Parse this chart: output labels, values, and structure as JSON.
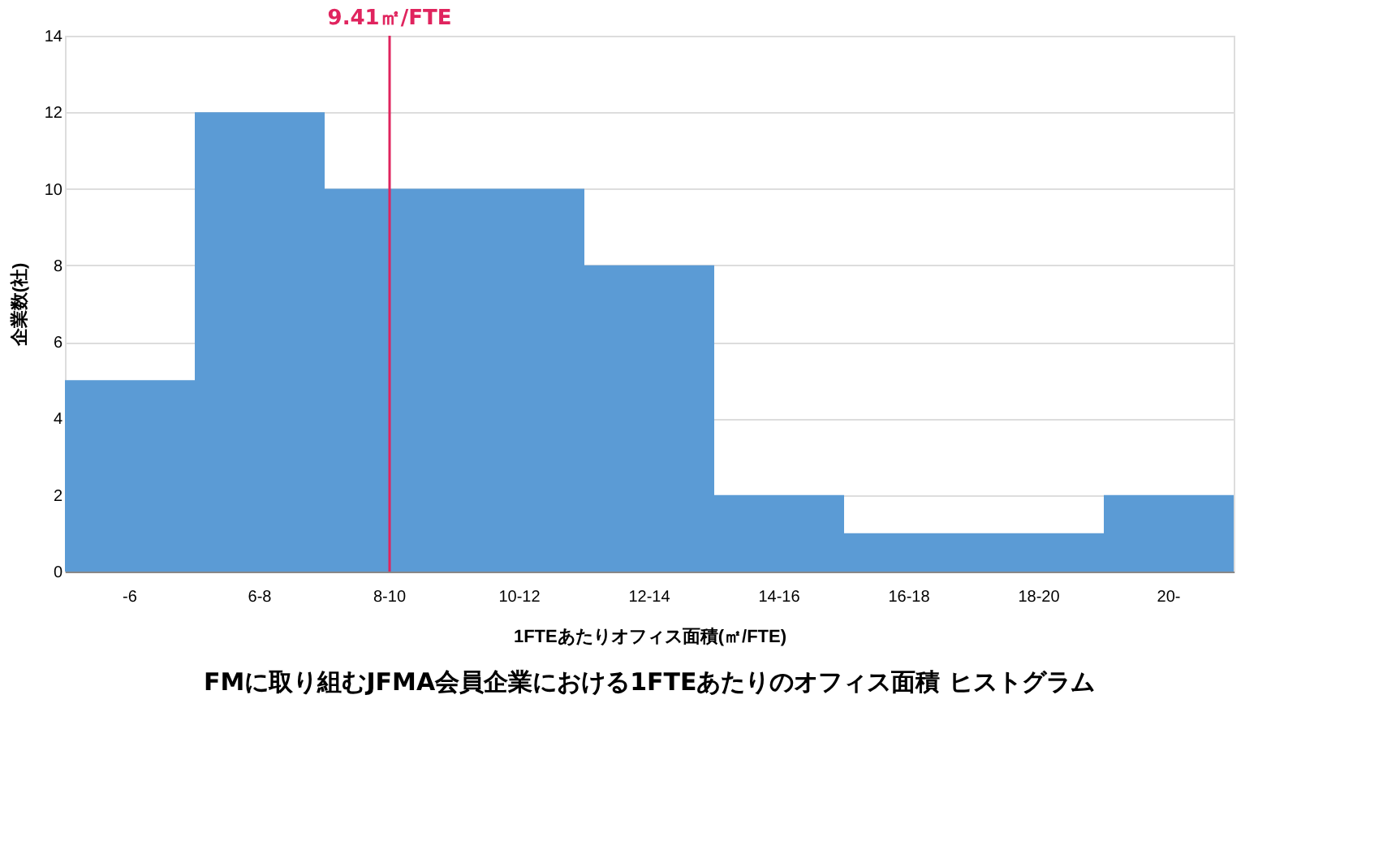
{
  "chart_data": {
    "type": "bar",
    "title": "FMに取り組むJFMA会員企業における1FTEあたりのオフィス面積 ヒストグラム",
    "xlabel": "1FTEあたりオフィス面積(㎡/FTE)",
    "ylabel": "企業数(社)",
    "categories": [
      "-6",
      "6-8",
      "8-10",
      "10-12",
      "12-14",
      "14-16",
      "16-18",
      "18-20",
      "20-"
    ],
    "values": [
      5,
      12,
      10,
      10,
      8,
      2,
      1,
      1,
      2
    ],
    "color": "#5b9bd5",
    "ylim": [
      0,
      14
    ],
    "yticks": [
      0,
      2,
      4,
      6,
      8,
      10,
      12,
      14
    ],
    "grid": "y",
    "annotations": [
      {
        "text": "9.41㎡/FTE",
        "x": "8-10"
      }
    ]
  }
}
